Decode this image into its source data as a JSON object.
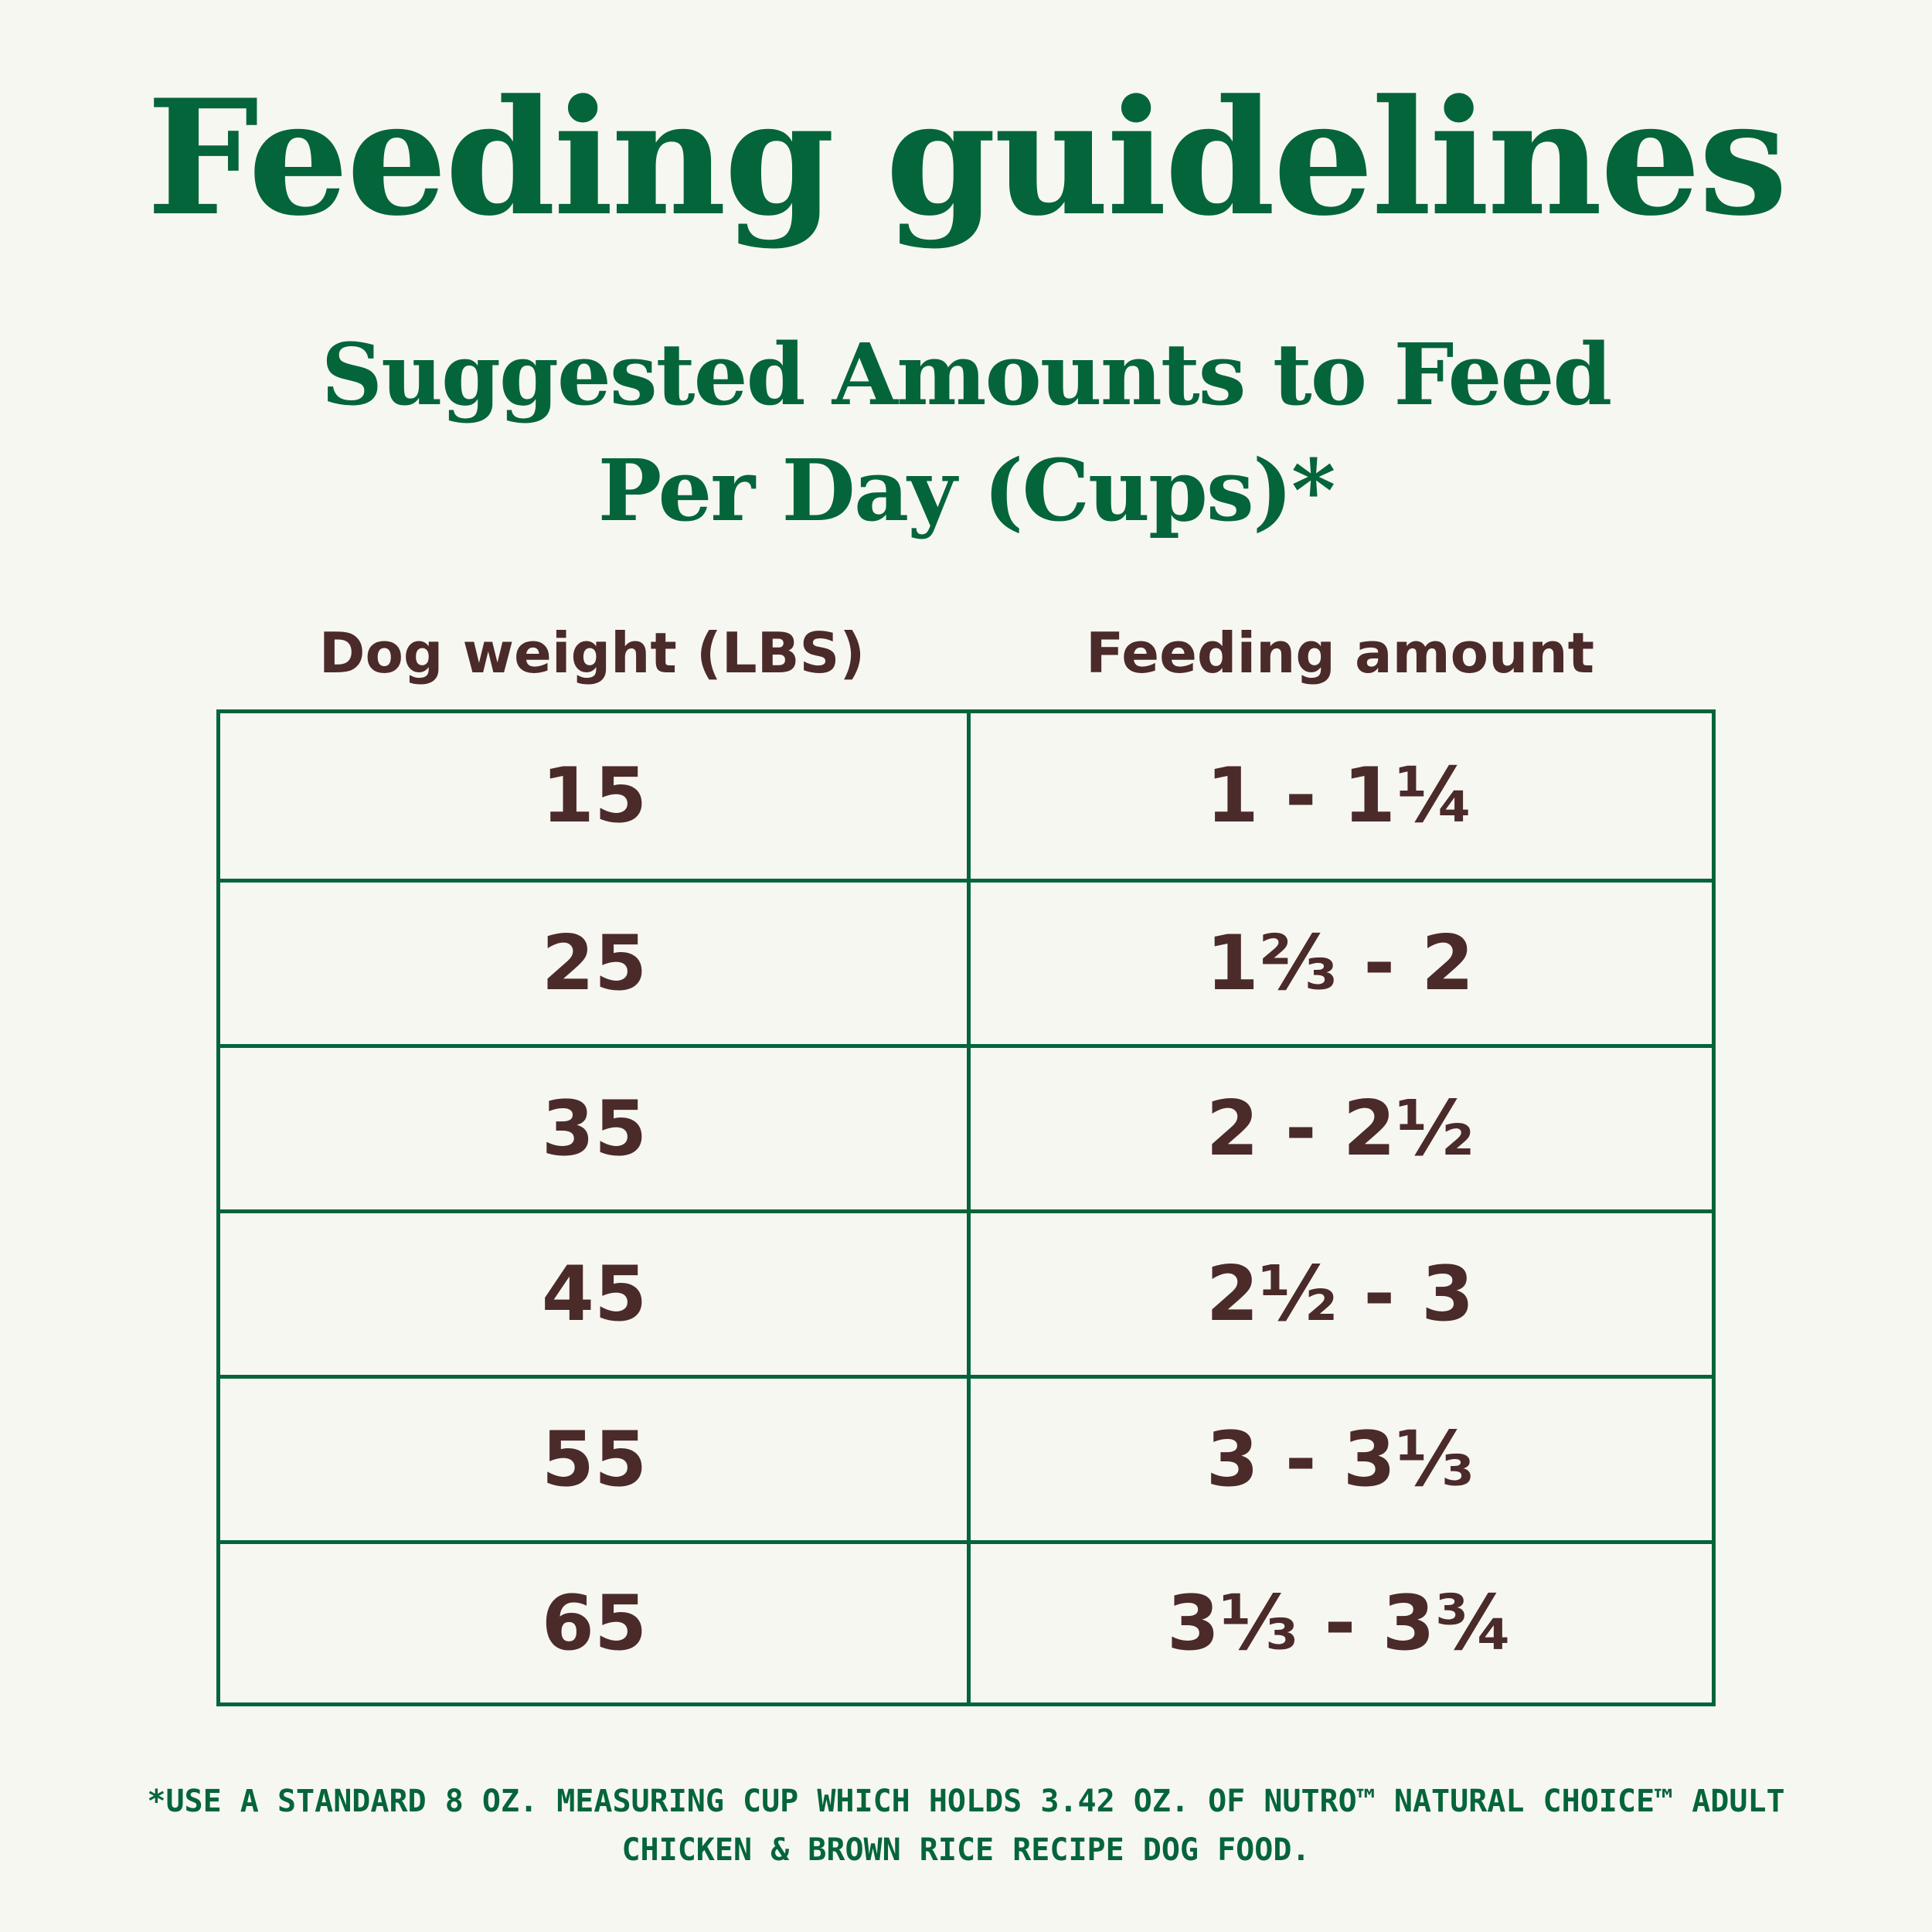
{
  "header": {
    "title": "Feeding guidelines",
    "subtitle_line1": "Suggested Amounts to Feed",
    "subtitle_line2": "Per Day (Cups)*"
  },
  "table": {
    "columns": [
      "Dog weight (LBS)",
      "Feeding amount"
    ],
    "rows": [
      {
        "weight": "15",
        "amount": "1 - 1¼"
      },
      {
        "weight": "25",
        "amount": "1⅔ - 2"
      },
      {
        "weight": "35",
        "amount": "2 - 2½"
      },
      {
        "weight": "45",
        "amount": "2½ - 3"
      },
      {
        "weight": "55",
        "amount": "3 - 3⅓"
      },
      {
        "weight": "65",
        "amount": "3⅓ - 3¾"
      }
    ]
  },
  "footnote": {
    "line1": "*USE A STANDARD 8 OZ. MEASURING CUP WHICH HOLDS 3.42 OZ. OF NUTRO™ NATURAL CHOICE™ ADULT",
    "line2": "CHICKEN & BROWN RICE RECIPE DOG FOOD."
  },
  "colors": {
    "background": "#f7f7f2",
    "brand_green": "#05653a",
    "text_brown": "#4b2a2a"
  }
}
